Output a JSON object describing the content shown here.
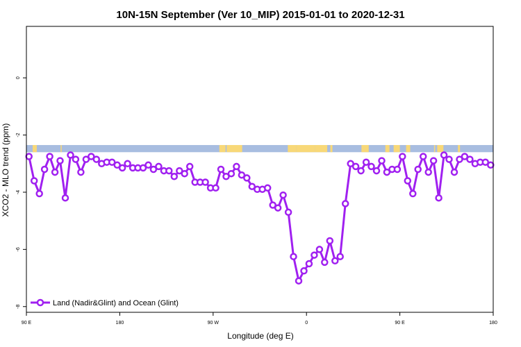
{
  "chart_data": {
    "type": "line",
    "title": "10N-15N September (Ver 10_MIP)   2015-01-01 to 2020-12-31",
    "xlabel": "Longitude (deg E)",
    "ylabel": "XCO2 - MLO trend (ppm)",
    "xlim": [
      90,
      450
    ],
    "ylim": [
      -8.2,
      1.8
    ],
    "x_tick_values": [
      90,
      180,
      270,
      360,
      450,
      540
    ],
    "x_tick_labels": [
      "90 E",
      "180",
      "90 W",
      "0",
      "90 E",
      "180"
    ],
    "y_tick_values": [
      0,
      -2,
      -4,
      -6,
      -8
    ],
    "y_tick_labels": [
      "0",
      "-2",
      "-4",
      "-6",
      "-8"
    ],
    "grid": false,
    "legend_position": "bottom-left",
    "colors": {
      "series": "#a020f0",
      "ocean_band": "#a8bde0",
      "land_band": "#f8d878",
      "axis": "#000000"
    },
    "series": [
      {
        "name": "Land (Nadir&Glint) and Ocean (Glint)",
        "x": [
          92.5,
          97.5,
          102.5,
          107.5,
          112.5,
          117.5,
          122.5,
          127.5,
          132.5,
          137.5,
          142.5,
          147.5,
          152.5,
          157.5,
          162.5,
          167.5,
          172.5,
          177.5,
          182.5,
          187.5,
          192.5,
          197.5,
          202.5,
          207.5,
          212.5,
          217.5,
          222.5,
          227.5,
          232.5,
          237.5,
          242.5,
          247.5,
          252.5,
          257.5,
          262.5,
          267.5,
          272.5,
          277.5,
          282.5,
          287.5,
          292.5,
          297.5,
          302.5,
          307.5,
          312.5,
          317.5,
          322.5,
          327.5,
          332.5,
          337.5,
          342.5,
          347.5,
          352.5,
          357.5,
          362.5,
          367.5,
          372.5,
          377.5,
          382.5,
          387.5,
          392.5,
          397.5,
          402.5,
          407.5,
          412.5,
          417.5,
          422.5,
          427.5,
          432.5,
          437.5,
          442.5,
          447.5
        ],
        "y": [
          -2.75,
          -3.6,
          -4.05,
          -3.2,
          -2.75,
          -3.3,
          -2.9,
          -4.2,
          -2.7,
          -2.85,
          -3.3,
          -2.85,
          -2.75,
          -2.85,
          -3.0,
          -2.95,
          -2.95,
          -3.05,
          -3.15,
          -3.0,
          -3.15,
          -3.15,
          -3.15,
          -3.05,
          -3.2,
          -3.1,
          -3.25,
          -3.25,
          -3.45,
          -3.25,
          -3.35,
          -3.1,
          -3.65,
          -3.65,
          -3.65,
          -3.85,
          -3.85,
          -3.2,
          -3.45,
          -3.35,
          -3.1,
          -3.4,
          -3.5,
          -3.8,
          -3.9,
          -3.9,
          -3.85,
          -4.45,
          -4.55,
          -4.1,
          -4.7,
          -6.25,
          -7.1,
          -6.75,
          -6.5,
          -6.2,
          -6.0,
          -6.45,
          -5.7,
          -6.4,
          -6.25,
          -4.4,
          -3.0,
          -3.1,
          -3.25,
          -2.95,
          -3.1,
          -3.25,
          -2.9,
          -3.3,
          -3.2,
          -3.2
        ]
      }
    ],
    "x_extra": [
      452.5,
      457.5,
      462.5,
      467.5,
      472.5,
      477.5,
      482.5,
      487.5,
      492.5,
      497.5,
      502.5,
      507.5,
      512.5,
      517.5,
      522.5,
      527.5,
      532.5,
      537.5
    ],
    "y_extra": [
      -2.75,
      -3.6,
      -4.05,
      -3.2,
      -2.75,
      -3.3,
      -2.9,
      -4.2,
      -2.7,
      -2.85,
      -3.3,
      -2.85,
      -2.75,
      -2.85,
      -3.0,
      -2.95,
      -2.95,
      -3.05
    ],
    "land_mask_band_y": [
      -2.6,
      -2.35
    ],
    "land_segments_lon": [
      [
        96,
        100
      ],
      [
        123,
        124
      ],
      [
        276,
        282
      ],
      [
        283,
        298
      ],
      [
        342,
        350
      ],
      [
        350,
        368
      ],
      [
        368,
        380
      ],
      [
        383,
        385
      ],
      [
        413,
        420
      ],
      [
        436,
        440
      ],
      [
        444,
        450
      ],
      [
        456,
        460
      ],
      [
        483,
        484
      ],
      [
        486,
        492
      ],
      [
        506,
        508
      ]
    ]
  }
}
